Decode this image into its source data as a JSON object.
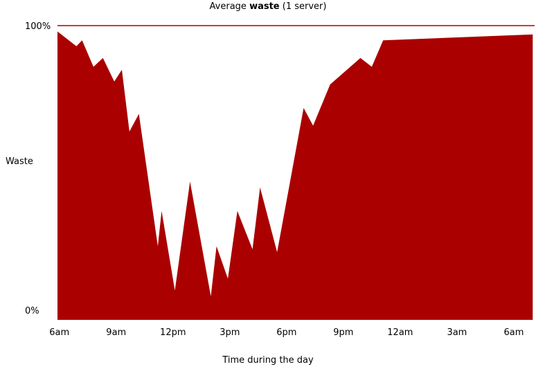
{
  "chart_data": {
    "type": "area",
    "title_prefix": "Average ",
    "title_bold": "waste",
    "title_suffix": " (1 server)",
    "ylabel": "Waste",
    "xlabel": "Time during the day",
    "ylim": [
      0,
      100
    ],
    "y_ticks": [
      "0%",
      "100%"
    ],
    "x_ticks": [
      "6am",
      "9am",
      "12pm",
      "3pm",
      "6pm",
      "9pm",
      "12am",
      "3am",
      "6am"
    ],
    "x_tick_hours": [
      6,
      9,
      12,
      15,
      18,
      21,
      24,
      27,
      30
    ],
    "xlim_hours": [
      5.9,
      31.1
    ],
    "series": [
      {
        "color": "#aa0000",
        "x_hours": [
          5.9,
          6.9,
          7.2,
          7.8,
          8.3,
          8.9,
          9.3,
          9.7,
          10.2,
          11.2,
          11.4,
          12.1,
          12.9,
          14.0,
          14.3,
          14.9,
          15.4,
          16.2,
          16.6,
          17.5,
          18.9,
          19.4,
          20.3,
          21.9,
          22.5,
          23.1,
          31.0
        ],
        "values": [
          98,
          93,
          95,
          86,
          89,
          81,
          85,
          64,
          70,
          25,
          37,
          10,
          47,
          8,
          25,
          14,
          37,
          24,
          45,
          23,
          72,
          66,
          80,
          89,
          86,
          95,
          97
        ]
      }
    ],
    "series_colors": {
      "fill": "#aa0000",
      "topline": "#aa0000"
    }
  }
}
